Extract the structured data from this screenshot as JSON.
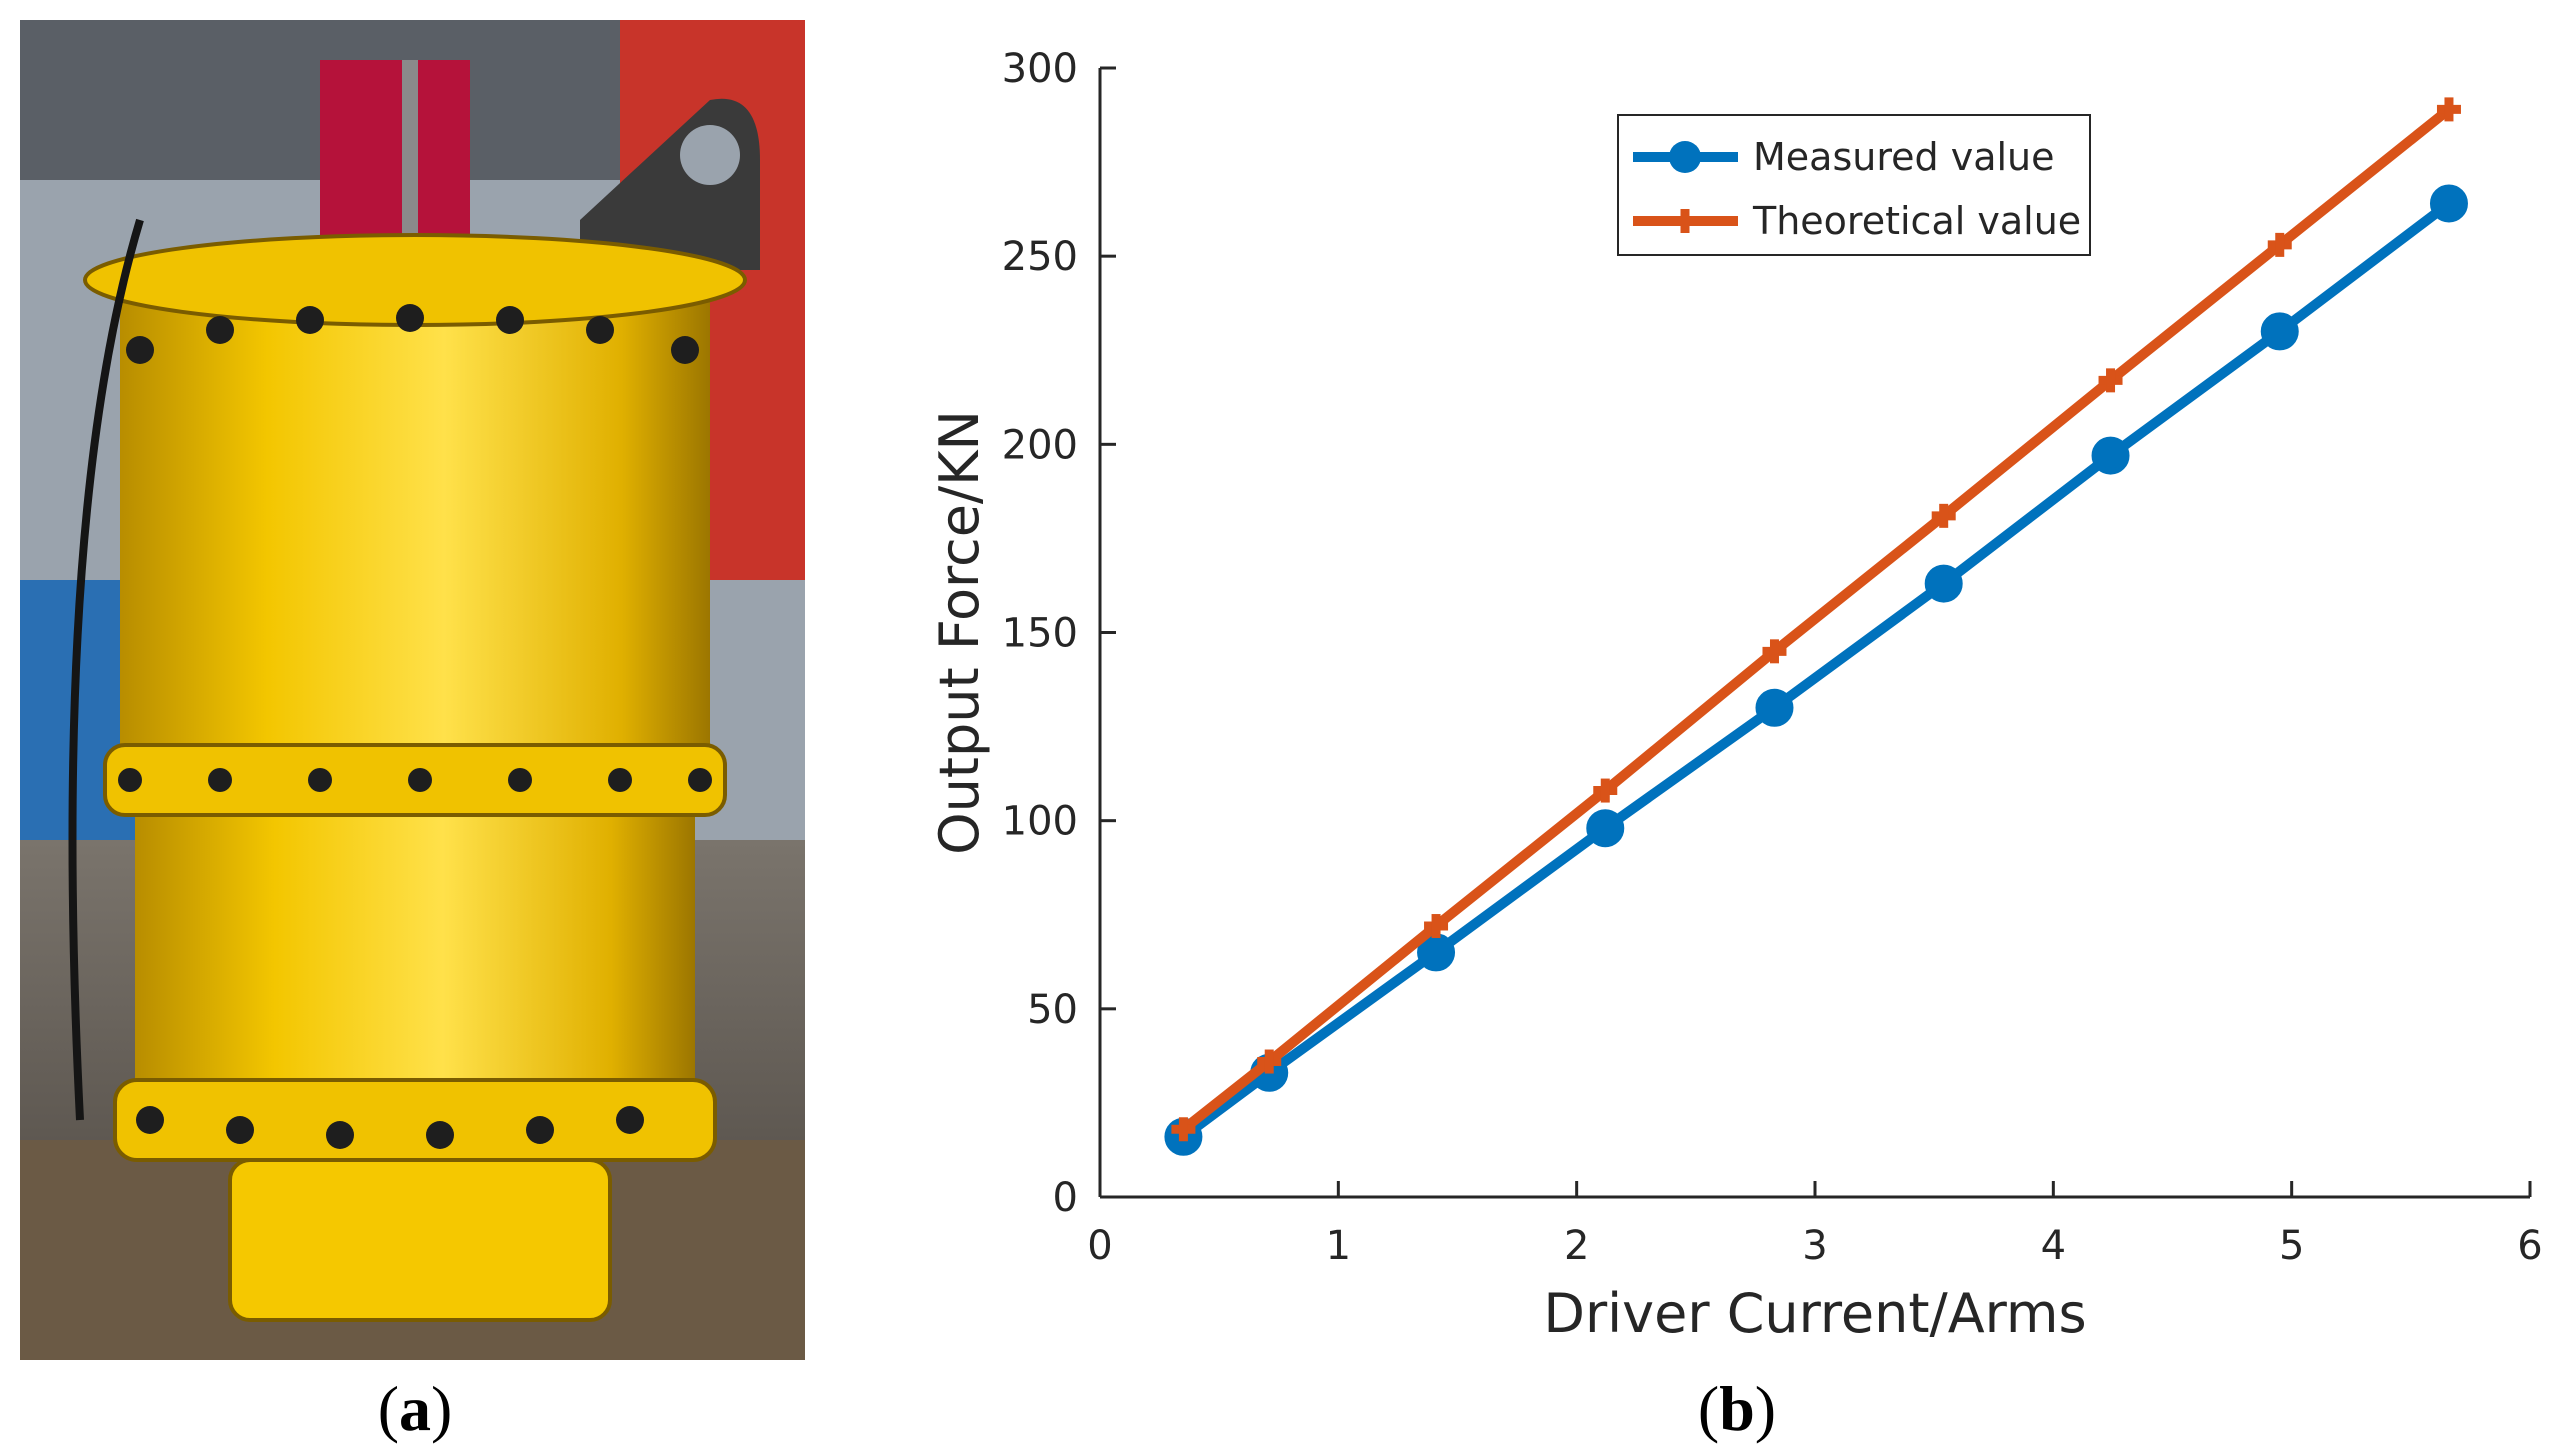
{
  "panels": [
    {
      "letter": "a",
      "caption_open": "(",
      "caption_close": ")"
    },
    {
      "letter": "b",
      "caption_open": "(",
      "caption_close": ")"
    }
  ],
  "photo": {
    "cylinder_color": "#f5c800",
    "cap_color": "#b5123a",
    "background_color": "#c8342a"
  },
  "chart_data": {
    "type": "line",
    "title": "",
    "xlabel": "Driver Current/Arms",
    "ylabel": "Output Force/KN",
    "xlim": [
      0,
      6
    ],
    "ylim": [
      0,
      300
    ],
    "xticks": [
      0,
      1,
      2,
      3,
      4,
      5,
      6
    ],
    "yticks": [
      0,
      50,
      100,
      150,
      200,
      250,
      300
    ],
    "grid": false,
    "legend_position": "top-right",
    "series": [
      {
        "name": "Measured value",
        "color": "#0072bd",
        "marker": "circle",
        "x": [
          0.35,
          0.71,
          1.41,
          2.12,
          2.83,
          3.54,
          4.24,
          4.95,
          5.66
        ],
        "y": [
          16,
          33,
          65,
          98,
          130,
          163,
          197,
          230,
          264
        ]
      },
      {
        "name": "Theoretical value",
        "color": "#d95319",
        "marker": "plus",
        "x": [
          0.35,
          0.71,
          1.41,
          2.12,
          2.83,
          3.54,
          4.24,
          4.95,
          5.66
        ],
        "y": [
          18,
          36,
          72,
          108,
          145,
          181,
          217,
          253,
          289
        ]
      }
    ]
  }
}
